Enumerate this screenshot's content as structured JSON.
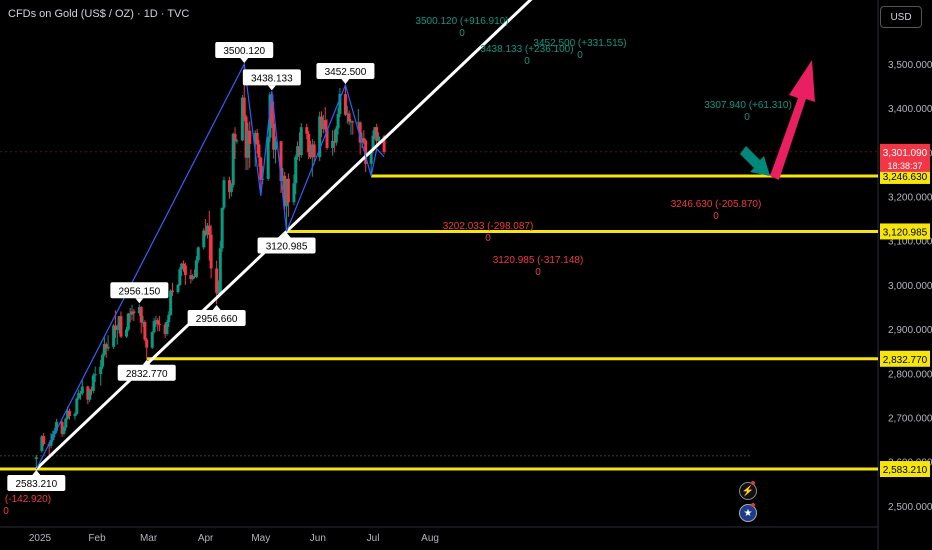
{
  "header": {
    "title": "CFDs on Gold (US$ / OZ) · 1D · TVC",
    "currency": "USD"
  },
  "icons": {
    "bolt": "lightning-icon",
    "flag": "us-flag-icon"
  },
  "colors": {
    "up": "#089981",
    "down": "#f23645",
    "trend": "#ffffff",
    "zigzag": "#2962ff",
    "level": "#f5e50a",
    "arrow_up": "#e91e63",
    "arrow_down": "#00897b",
    "bg": "#000000",
    "price_tag": "#f23645"
  },
  "chart_data": {
    "type": "candlestick",
    "symbol": "CFDs on Gold (US$ / OZ)",
    "timeframe": "1D",
    "source": "TVC",
    "x_ticks": [
      "2025",
      "Feb",
      "Mar",
      "Apr",
      "May",
      "Jun",
      "Jul",
      "Aug"
    ],
    "y_ticks": [
      "2,500.000",
      "2,600.000",
      "2,700.000",
      "2,800.000",
      "2,900.000",
      "3,000.000",
      "3,100.000",
      "3,200.000",
      "3,300.000",
      "3,400.000",
      "3,500.000"
    ],
    "ylim": [
      2470,
      3595
    ],
    "current_price": {
      "value": "3,301.090",
      "countdown": "18:38:37"
    },
    "horizontal_levels": [
      "3,246.630",
      "3,120.985",
      "2,832.770",
      "2,583.210"
    ],
    "points": [
      {
        "label": "2583.210",
        "date": "2024-12-30",
        "price": 2583.21,
        "anchor": "bottom"
      },
      {
        "label": "2956.150",
        "date": "2025-02-24",
        "price": 2956.15,
        "anchor": "top"
      },
      {
        "label": "2832.770",
        "date": "2025-02-28",
        "price": 2832.77,
        "anchor": "bottom"
      },
      {
        "label": "2956.660",
        "date": "2025-04-07",
        "price": 2956.66,
        "anchor": "bottom"
      },
      {
        "label": "3500.120",
        "date": "2025-04-22",
        "price": 3500.12,
        "anchor": "top"
      },
      {
        "label": "3438.133",
        "date": "2025-05-07",
        "price": 3438.13,
        "anchor": "top"
      },
      {
        "label": "3120.985",
        "date": "2025-05-15",
        "price": 3120.99,
        "anchor": "bottom"
      },
      {
        "label": "3452.500",
        "date": "2025-06-16",
        "price": 3452.5,
        "anchor": "top"
      }
    ],
    "annotations": [
      {
        "text": "3500.120 (+916.910)",
        "sub": "0",
        "color": "up"
      },
      {
        "text": "3438.133 (+236.100)",
        "sub": "0",
        "color": "up"
      },
      {
        "text": "3452.500 (+331.515)",
        "sub": "0",
        "color": "up"
      },
      {
        "text": "3307.940 (+61.310)",
        "sub": "0",
        "color": "up"
      },
      {
        "text": "3202.033 (-298.087)",
        "sub": "0",
        "color": "down"
      },
      {
        "text": "3120.985 (-317.148)",
        "sub": "0",
        "color": "down"
      },
      {
        "text": "3246.630 (-205.870)",
        "sub": "0",
        "color": "down"
      },
      {
        "text": "(-142.920)",
        "sub": "0",
        "color": "down"
      }
    ],
    "zigzag": [
      {
        "date": "2024-12-30",
        "price": 2583.21
      },
      {
        "date": "2025-04-22",
        "price": 3500.12
      },
      {
        "date": "2025-05-01",
        "price": 3202.03
      },
      {
        "date": "2025-05-07",
        "price": 3438.13
      },
      {
        "date": "2025-05-15",
        "price": 3120.99
      },
      {
        "date": "2025-06-16",
        "price": 3452.5
      },
      {
        "date": "2025-06-30",
        "price": 3246.63
      },
      {
        "date": "2025-07-03",
        "price": 3307.94
      },
      {
        "date": "2025-07-07",
        "price": 3290
      }
    ],
    "trendline": [
      {
        "date": "2024-12-30",
        "price": 2583.21
      },
      {
        "date": "2025-05-15",
        "price": 3120.99
      }
    ],
    "candles": [
      {
        "d": "2024-12-30",
        "o": 2606,
        "h": 2615,
        "l": 2583,
        "c": 2610
      },
      {
        "d": "2025-01-02",
        "o": 2624,
        "h": 2660,
        "l": 2620,
        "c": 2657
      },
      {
        "d": "2025-01-03",
        "o": 2658,
        "h": 2665,
        "l": 2635,
        "c": 2640
      },
      {
        "d": "2025-01-06",
        "o": 2640,
        "h": 2645,
        "l": 2614,
        "c": 2636
      },
      {
        "d": "2025-01-07",
        "o": 2636,
        "h": 2664,
        "l": 2630,
        "c": 2649
      },
      {
        "d": "2025-01-08",
        "o": 2649,
        "h": 2670,
        "l": 2645,
        "c": 2662
      },
      {
        "d": "2025-01-09",
        "o": 2662,
        "h": 2677,
        "l": 2655,
        "c": 2670
      },
      {
        "d": "2025-01-10",
        "o": 2670,
        "h": 2697,
        "l": 2665,
        "c": 2690
      },
      {
        "d": "2025-01-13",
        "o": 2690,
        "h": 2693,
        "l": 2656,
        "c": 2663
      },
      {
        "d": "2025-01-14",
        "o": 2663,
        "h": 2680,
        "l": 2659,
        "c": 2677
      },
      {
        "d": "2025-01-15",
        "o": 2677,
        "h": 2700,
        "l": 2670,
        "c": 2697
      },
      {
        "d": "2025-01-16",
        "o": 2697,
        "h": 2725,
        "l": 2695,
        "c": 2715
      },
      {
        "d": "2025-01-17",
        "o": 2715,
        "h": 2720,
        "l": 2695,
        "c": 2703
      },
      {
        "d": "2025-01-20",
        "o": 2703,
        "h": 2712,
        "l": 2695,
        "c": 2708
      },
      {
        "d": "2025-01-21",
        "o": 2708,
        "h": 2745,
        "l": 2705,
        "c": 2743
      },
      {
        "d": "2025-01-22",
        "o": 2743,
        "h": 2763,
        "l": 2740,
        "c": 2755
      },
      {
        "d": "2025-01-23",
        "o": 2755,
        "h": 2760,
        "l": 2740,
        "c": 2755
      },
      {
        "d": "2025-01-24",
        "o": 2755,
        "h": 2786,
        "l": 2750,
        "c": 2770
      },
      {
        "d": "2025-01-27",
        "o": 2770,
        "h": 2772,
        "l": 2730,
        "c": 2740
      },
      {
        "d": "2025-01-28",
        "o": 2740,
        "h": 2765,
        "l": 2735,
        "c": 2763
      },
      {
        "d": "2025-01-29",
        "o": 2763,
        "h": 2770,
        "l": 2750,
        "c": 2760
      },
      {
        "d": "2025-01-30",
        "o": 2760,
        "h": 2800,
        "l": 2755,
        "c": 2795
      },
      {
        "d": "2025-01-31",
        "o": 2795,
        "h": 2815,
        "l": 2780,
        "c": 2798
      },
      {
        "d": "2025-02-03",
        "o": 2798,
        "h": 2830,
        "l": 2772,
        "c": 2815
      },
      {
        "d": "2025-02-04",
        "o": 2815,
        "h": 2845,
        "l": 2810,
        "c": 2842
      },
      {
        "d": "2025-02-05",
        "o": 2842,
        "h": 2882,
        "l": 2838,
        "c": 2866
      },
      {
        "d": "2025-02-06",
        "o": 2866,
        "h": 2870,
        "l": 2835,
        "c": 2856
      },
      {
        "d": "2025-02-07",
        "o": 2856,
        "h": 2886,
        "l": 2850,
        "c": 2860
      },
      {
        "d": "2025-02-10",
        "o": 2860,
        "h": 2911,
        "l": 2855,
        "c": 2908
      },
      {
        "d": "2025-02-11",
        "o": 2908,
        "h": 2942,
        "l": 2880,
        "c": 2898
      },
      {
        "d": "2025-02-12",
        "o": 2898,
        "h": 2910,
        "l": 2865,
        "c": 2904
      },
      {
        "d": "2025-02-13",
        "o": 2904,
        "h": 2930,
        "l": 2890,
        "c": 2929
      },
      {
        "d": "2025-02-14",
        "o": 2929,
        "h": 2940,
        "l": 2880,
        "c": 2883
      },
      {
        "d": "2025-02-17",
        "o": 2883,
        "h": 2905,
        "l": 2880,
        "c": 2899
      },
      {
        "d": "2025-02-18",
        "o": 2899,
        "h": 2937,
        "l": 2895,
        "c": 2935
      },
      {
        "d": "2025-02-19",
        "o": 2935,
        "h": 2948,
        "l": 2915,
        "c": 2933
      },
      {
        "d": "2025-02-20",
        "o": 2933,
        "h": 2955,
        "l": 2920,
        "c": 2940
      },
      {
        "d": "2025-02-21",
        "o": 2940,
        "h": 2945,
        "l": 2918,
        "c": 2936
      },
      {
        "d": "2025-02-24",
        "o": 2936,
        "h": 2956,
        "l": 2930,
        "c": 2950
      },
      {
        "d": "2025-02-25",
        "o": 2950,
        "h": 2952,
        "l": 2890,
        "c": 2915
      },
      {
        "d": "2025-02-26",
        "o": 2915,
        "h": 2930,
        "l": 2905,
        "c": 2916
      },
      {
        "d": "2025-02-27",
        "o": 2916,
        "h": 2920,
        "l": 2872,
        "c": 2876
      },
      {
        "d": "2025-02-28",
        "o": 2876,
        "h": 2880,
        "l": 2832,
        "c": 2858
      },
      {
        "d": "2025-03-03",
        "o": 2858,
        "h": 2895,
        "l": 2855,
        "c": 2893
      },
      {
        "d": "2025-03-04",
        "o": 2893,
        "h": 2925,
        "l": 2890,
        "c": 2918
      },
      {
        "d": "2025-03-05",
        "o": 2918,
        "h": 2930,
        "l": 2905,
        "c": 2920
      },
      {
        "d": "2025-03-06",
        "o": 2920,
        "h": 2925,
        "l": 2895,
        "c": 2911
      },
      {
        "d": "2025-03-07",
        "o": 2911,
        "h": 2930,
        "l": 2895,
        "c": 2910
      },
      {
        "d": "2025-03-10",
        "o": 2910,
        "h": 2915,
        "l": 2880,
        "c": 2889
      },
      {
        "d": "2025-03-11",
        "o": 2889,
        "h": 2920,
        "l": 2885,
        "c": 2916
      },
      {
        "d": "2025-03-12",
        "o": 2916,
        "h": 2940,
        "l": 2905,
        "c": 2932
      },
      {
        "d": "2025-03-13",
        "o": 2932,
        "h": 2990,
        "l": 2930,
        "c": 2987
      },
      {
        "d": "2025-03-14",
        "o": 2987,
        "h": 3005,
        "l": 2975,
        "c": 2984
      },
      {
        "d": "2025-03-17",
        "o": 2984,
        "h": 3002,
        "l": 2980,
        "c": 3000
      },
      {
        "d": "2025-03-18",
        "o": 3000,
        "h": 3040,
        "l": 2998,
        "c": 3035
      },
      {
        "d": "2025-03-19",
        "o": 3035,
        "h": 3050,
        "l": 3020,
        "c": 3048
      },
      {
        "d": "2025-03-20",
        "o": 3048,
        "h": 3055,
        "l": 3030,
        "c": 3044
      },
      {
        "d": "2025-03-21",
        "o": 3044,
        "h": 3050,
        "l": 3000,
        "c": 3022
      },
      {
        "d": "2025-03-24",
        "o": 3022,
        "h": 3035,
        "l": 3003,
        "c": 3013
      },
      {
        "d": "2025-03-25",
        "o": 3013,
        "h": 3025,
        "l": 3010,
        "c": 3020
      },
      {
        "d": "2025-03-26",
        "o": 3020,
        "h": 3035,
        "l": 3015,
        "c": 3018
      },
      {
        "d": "2025-03-27",
        "o": 3018,
        "h": 3065,
        "l": 3015,
        "c": 3056
      },
      {
        "d": "2025-03-28",
        "o": 3056,
        "h": 3087,
        "l": 3050,
        "c": 3085
      },
      {
        "d": "2025-03-31",
        "o": 3085,
        "h": 3128,
        "l": 3080,
        "c": 3123
      },
      {
        "d": "2025-04-01",
        "o": 3123,
        "h": 3149,
        "l": 3110,
        "c": 3113
      },
      {
        "d": "2025-04-02",
        "o": 3113,
        "h": 3140,
        "l": 3105,
        "c": 3134
      },
      {
        "d": "2025-04-03",
        "o": 3134,
        "h": 3168,
        "l": 3055,
        "c": 3114
      },
      {
        "d": "2025-04-04",
        "o": 3114,
        "h": 3135,
        "l": 3015,
        "c": 3037
      },
      {
        "d": "2025-04-07",
        "o": 3037,
        "h": 3055,
        "l": 2956,
        "c": 2982
      },
      {
        "d": "2025-04-08",
        "o": 2982,
        "h": 3010,
        "l": 2970,
        "c": 2982
      },
      {
        "d": "2025-04-09",
        "o": 2982,
        "h": 3100,
        "l": 2975,
        "c": 3083
      },
      {
        "d": "2025-04-10",
        "o": 3083,
        "h": 3175,
        "l": 3075,
        "c": 3175
      },
      {
        "d": "2025-04-11",
        "o": 3175,
        "h": 3245,
        "l": 3170,
        "c": 3237
      },
      {
        "d": "2025-04-14",
        "o": 3237,
        "h": 3245,
        "l": 3195,
        "c": 3210
      },
      {
        "d": "2025-04-15",
        "o": 3210,
        "h": 3230,
        "l": 3200,
        "c": 3226
      },
      {
        "d": "2025-04-16",
        "o": 3226,
        "h": 3345,
        "l": 3220,
        "c": 3342
      },
      {
        "d": "2025-04-17",
        "o": 3342,
        "h": 3357,
        "l": 3285,
        "c": 3327
      },
      {
        "d": "2025-04-18",
        "o": 3327,
        "h": 3330,
        "l": 3320,
        "c": 3327
      },
      {
        "d": "2025-04-21",
        "o": 3327,
        "h": 3430,
        "l": 3325,
        "c": 3424
      },
      {
        "d": "2025-04-22",
        "o": 3424,
        "h": 3500,
        "l": 3370,
        "c": 3381
      },
      {
        "d": "2025-04-23",
        "o": 3381,
        "h": 3385,
        "l": 3260,
        "c": 3288
      },
      {
        "d": "2025-04-24",
        "o": 3288,
        "h": 3367,
        "l": 3260,
        "c": 3349
      },
      {
        "d": "2025-04-25",
        "o": 3349,
        "h": 3370,
        "l": 3265,
        "c": 3319
      },
      {
        "d": "2025-04-28",
        "o": 3319,
        "h": 3350,
        "l": 3268,
        "c": 3344
      },
      {
        "d": "2025-04-29",
        "o": 3344,
        "h": 3353,
        "l": 3297,
        "c": 3318
      },
      {
        "d": "2025-04-30",
        "o": 3318,
        "h": 3328,
        "l": 3267,
        "c": 3288
      },
      {
        "d": "2025-05-01",
        "o": 3288,
        "h": 3290,
        "l": 3202,
        "c": 3238
      },
      {
        "d": "2025-05-02",
        "o": 3238,
        "h": 3269,
        "l": 3228,
        "c": 3240
      },
      {
        "d": "2025-05-05",
        "o": 3240,
        "h": 3336,
        "l": 3236,
        "c": 3333
      },
      {
        "d": "2025-05-06",
        "o": 3333,
        "h": 3436,
        "l": 3324,
        "c": 3431
      },
      {
        "d": "2025-05-07",
        "o": 3431,
        "h": 3438,
        "l": 3355,
        "c": 3365
      },
      {
        "d": "2025-05-08",
        "o": 3365,
        "h": 3415,
        "l": 3286,
        "c": 3306
      },
      {
        "d": "2025-05-09",
        "o": 3306,
        "h": 3336,
        "l": 3275,
        "c": 3325
      },
      {
        "d": "2025-05-12",
        "o": 3325,
        "h": 3326,
        "l": 3208,
        "c": 3235
      },
      {
        "d": "2025-05-13",
        "o": 3235,
        "h": 3265,
        "l": 3215,
        "c": 3247
      },
      {
        "d": "2025-05-14",
        "o": 3247,
        "h": 3256,
        "l": 3170,
        "c": 3178
      },
      {
        "d": "2025-05-15",
        "o": 3178,
        "h": 3240,
        "l": 3121,
        "c": 3240
      },
      {
        "d": "2025-05-16",
        "o": 3240,
        "h": 3252,
        "l": 3154,
        "c": 3187
      },
      {
        "d": "2025-05-19",
        "o": 3187,
        "h": 3250,
        "l": 3180,
        "c": 3230
      },
      {
        "d": "2025-05-20",
        "o": 3230,
        "h": 3295,
        "l": 3205,
        "c": 3290
      },
      {
        "d": "2025-05-21",
        "o": 3290,
        "h": 3325,
        "l": 3283,
        "c": 3314
      },
      {
        "d": "2025-05-22",
        "o": 3314,
        "h": 3345,
        "l": 3280,
        "c": 3294
      },
      {
        "d": "2025-05-23",
        "o": 3294,
        "h": 3366,
        "l": 3288,
        "c": 3357
      },
      {
        "d": "2025-05-26",
        "o": 3357,
        "h": 3365,
        "l": 3330,
        "c": 3342
      },
      {
        "d": "2025-05-27",
        "o": 3342,
        "h": 3348,
        "l": 3285,
        "c": 3300
      },
      {
        "d": "2025-05-28",
        "o": 3300,
        "h": 3326,
        "l": 3285,
        "c": 3289
      },
      {
        "d": "2025-05-29",
        "o": 3289,
        "h": 3330,
        "l": 3245,
        "c": 3318
      },
      {
        "d": "2025-05-30",
        "o": 3318,
        "h": 3326,
        "l": 3272,
        "c": 3289
      },
      {
        "d": "2025-06-02",
        "o": 3289,
        "h": 3392,
        "l": 3280,
        "c": 3381
      },
      {
        "d": "2025-06-03",
        "o": 3381,
        "h": 3393,
        "l": 3335,
        "c": 3353
      },
      {
        "d": "2025-06-04",
        "o": 3353,
        "h": 3385,
        "l": 3343,
        "c": 3373
      },
      {
        "d": "2025-06-05",
        "o": 3373,
        "h": 3403,
        "l": 3345,
        "c": 3352
      },
      {
        "d": "2025-06-06",
        "o": 3352,
        "h": 3375,
        "l": 3306,
        "c": 3310
      },
      {
        "d": "2025-06-09",
        "o": 3310,
        "h": 3350,
        "l": 3293,
        "c": 3326
      },
      {
        "d": "2025-06-10",
        "o": 3326,
        "h": 3350,
        "l": 3300,
        "c": 3322
      },
      {
        "d": "2025-06-11",
        "o": 3322,
        "h": 3360,
        "l": 3315,
        "c": 3354
      },
      {
        "d": "2025-06-12",
        "o": 3354,
        "h": 3400,
        "l": 3340,
        "c": 3387
      },
      {
        "d": "2025-06-13",
        "o": 3387,
        "h": 3446,
        "l": 3380,
        "c": 3432
      },
      {
        "d": "2025-06-16",
        "o": 3432,
        "h": 3452,
        "l": 3382,
        "c": 3385
      },
      {
        "d": "2025-06-17",
        "o": 3385,
        "h": 3405,
        "l": 3365,
        "c": 3388
      },
      {
        "d": "2025-06-18",
        "o": 3388,
        "h": 3395,
        "l": 3362,
        "c": 3370
      },
      {
        "d": "2025-06-19",
        "o": 3370,
        "h": 3375,
        "l": 3340,
        "c": 3370
      },
      {
        "d": "2025-06-20",
        "o": 3370,
        "h": 3372,
        "l": 3340,
        "c": 3368
      },
      {
        "d": "2025-06-23",
        "o": 3368,
        "h": 3398,
        "l": 3348,
        "c": 3368
      },
      {
        "d": "2025-06-24",
        "o": 3368,
        "h": 3370,
        "l": 3295,
        "c": 3322
      },
      {
        "d": "2025-06-25",
        "o": 3322,
        "h": 3345,
        "l": 3310,
        "c": 3332
      },
      {
        "d": "2025-06-26",
        "o": 3332,
        "h": 3350,
        "l": 3318,
        "c": 3327
      },
      {
        "d": "2025-06-27",
        "o": 3327,
        "h": 3330,
        "l": 3255,
        "c": 3274
      },
      {
        "d": "2025-06-30",
        "o": 3274,
        "h": 3305,
        "l": 3246,
        "c": 3303
      },
      {
        "d": "2025-07-01",
        "o": 3303,
        "h": 3350,
        "l": 3298,
        "c": 3338
      },
      {
        "d": "2025-07-02",
        "o": 3338,
        "h": 3358,
        "l": 3330,
        "c": 3357
      },
      {
        "d": "2025-07-03",
        "o": 3357,
        "h": 3365,
        "l": 3310,
        "c": 3326
      },
      {
        "d": "2025-07-04",
        "o": 3326,
        "h": 3345,
        "l": 3323,
        "c": 3336
      },
      {
        "d": "2025-07-07",
        "o": 3336,
        "h": 3340,
        "l": 3296,
        "c": 3301
      }
    ]
  }
}
